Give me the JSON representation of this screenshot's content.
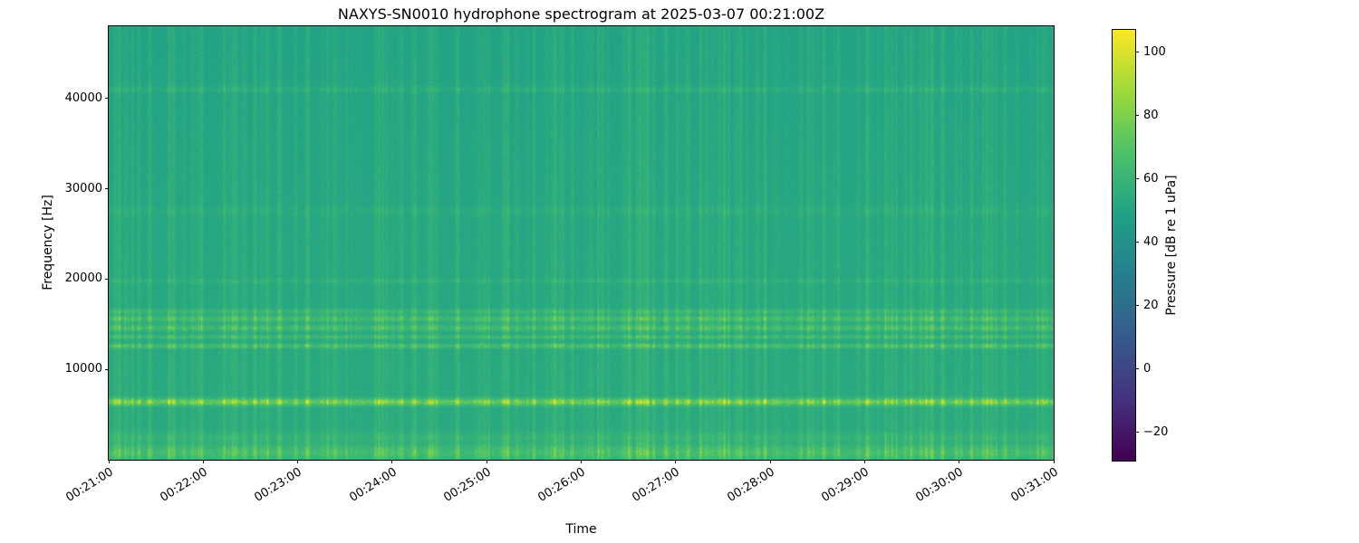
{
  "figure": {
    "background_color": "#ffffff",
    "text_color": "#000000"
  },
  "chart_data": {
    "type": "heatmap",
    "subtype": "spectrogram",
    "title": "NAXYS-SN0010 hydrophone spectrogram at 2025-03-07 00:21:00Z",
    "xlabel": "Time",
    "ylabel": "Frequency [Hz]",
    "x_tick_labels": [
      "00:21:00",
      "00:22:00",
      "00:23:00",
      "00:24:00",
      "00:25:00",
      "00:26:00",
      "00:27:00",
      "00:28:00",
      "00:29:00",
      "00:30:00",
      "00:31:00"
    ],
    "y_tick_values": [
      10000,
      20000,
      30000,
      40000
    ],
    "y_tick_labels": [
      "10000",
      "20000",
      "30000",
      "40000"
    ],
    "ylim": [
      0,
      48000
    ],
    "duration_seconds": 600,
    "grid": false,
    "colormap": "viridis",
    "colormap_stops": [
      [
        0.0,
        68,
        1,
        84
      ],
      [
        0.14,
        70,
        50,
        127
      ],
      [
        0.29,
        54,
        92,
        141
      ],
      [
        0.43,
        39,
        127,
        142
      ],
      [
        0.57,
        31,
        161,
        135
      ],
      [
        0.71,
        74,
        193,
        109
      ],
      [
        0.86,
        159,
        218,
        58
      ],
      [
        1.0,
        253,
        231,
        37
      ]
    ],
    "colorbar": {
      "label": "Pressure [dB re 1 uPa]",
      "tick_labels": [
        "100",
        "80",
        "60",
        "40",
        "20",
        "0",
        "−20"
      ],
      "tick_values": [
        100,
        80,
        60,
        40,
        20,
        0,
        -20
      ],
      "vmin": -29,
      "vmax": 107
    },
    "heatmap_model": {
      "background_db_low_freq": 54,
      "background_db_high_freq": 50,
      "horizontal_bands": [
        {
          "center_hz": 800,
          "sigma_hz": 600,
          "boost_db": 15
        },
        {
          "center_hz": 2500,
          "sigma_hz": 400,
          "boost_db": 6
        },
        {
          "center_hz": 6400,
          "sigma_hz": 260,
          "boost_db": 30
        },
        {
          "center_hz": 12600,
          "sigma_hz": 180,
          "boost_db": 16
        },
        {
          "center_hz": 13600,
          "sigma_hz": 160,
          "boost_db": 12
        },
        {
          "center_hz": 14600,
          "sigma_hz": 250,
          "boost_db": 15
        },
        {
          "center_hz": 15600,
          "sigma_hz": 250,
          "boost_db": 15
        },
        {
          "center_hz": 16400,
          "sigma_hz": 200,
          "boost_db": 10
        },
        {
          "center_hz": 19800,
          "sigma_hz": 180,
          "boost_db": 5
        },
        {
          "center_hz": 27500,
          "sigma_hz": 400,
          "boost_db": 3
        },
        {
          "center_hz": 41000,
          "sigma_hz": 250,
          "boost_db": 5
        }
      ],
      "transients": {
        "seed": 11,
        "count": 320,
        "strong_count": 10,
        "full_height_extra_db": 10
      }
    }
  }
}
